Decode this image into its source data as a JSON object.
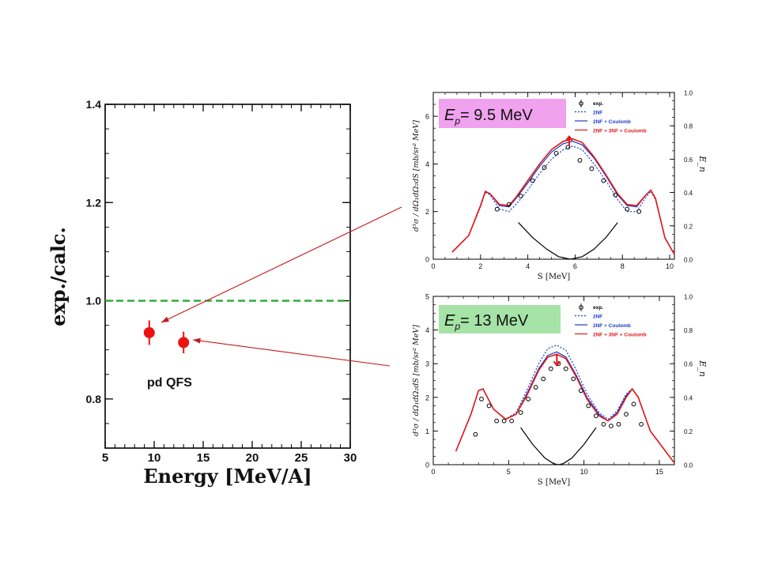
{
  "chart_data": [
    {
      "id": "ratio",
      "type": "scatter",
      "xlabel": "Energy [MeV/A]",
      "ylabel": "exp./calc.",
      "xlim": [
        5,
        30
      ],
      "ylim": [
        0.7,
        1.4
      ],
      "x_ticks": [
        "5",
        "10",
        "15",
        "20",
        "25",
        "30"
      ],
      "y_ticks": [
        "0.8",
        "1.0",
        "1.2",
        "1.4"
      ],
      "reference_line": {
        "y": 1.0,
        "style": "dashed",
        "color": "#22aa33"
      },
      "points": [
        {
          "x": 9.5,
          "y": 0.935,
          "err": 0.025
        },
        {
          "x": 13.0,
          "y": 0.915,
          "err": 0.022
        }
      ],
      "point_color": "#ee1111",
      "annotation": "pd QFS"
    },
    {
      "id": "ep95",
      "type": "line",
      "title": "E_p = 9.5 MeV",
      "xlabel": "S [MeV]",
      "ylabel": "d³σ / dΩ₁dΩ₂dS [mb/sr² MeV]",
      "right_label": "E_n",
      "xlim": [
        0,
        10.2
      ],
      "ylim": [
        0,
        7
      ],
      "right_ylim": [
        0,
        1
      ],
      "x_ticks": [
        "0",
        "2",
        "4",
        "6",
        "8",
        "10"
      ],
      "y_ticks": [
        "0",
        "2",
        "4",
        "6"
      ],
      "right_ticks": [
        "0.0",
        "0.2",
        "0.4",
        "0.6",
        "0.8",
        "1.0"
      ],
      "legend": [
        "exp.",
        "2NF",
        "2NF + Coulomb",
        "2NF + 3NF + Coulomb"
      ],
      "series": [
        {
          "name": "2NF",
          "color": "#1a3cc8",
          "dash": true,
          "x": [
            0.8,
            1.5,
            2.0,
            2.2,
            2.4,
            2.8,
            3.2,
            3.5,
            4.0,
            4.5,
            5.0,
            5.5,
            5.9,
            6.3,
            6.8,
            7.3,
            7.8,
            8.2,
            8.6,
            9.0,
            9.2,
            9.4,
            9.8,
            10.2
          ],
          "y": [
            0.3,
            1.0,
            2.2,
            2.8,
            2.7,
            2.1,
            2.0,
            2.3,
            2.9,
            3.6,
            4.2,
            4.6,
            4.75,
            4.6,
            4.0,
            3.3,
            2.5,
            2.0,
            2.0,
            2.6,
            2.85,
            2.5,
            0.9,
            0.2
          ]
        },
        {
          "name": "2NF + Coulomb",
          "color": "#1a3cc8",
          "dash": false,
          "x": [
            0.8,
            1.5,
            2.0,
            2.2,
            2.4,
            2.8,
            3.2,
            3.5,
            4.0,
            4.5,
            5.0,
            5.5,
            5.9,
            6.3,
            6.8,
            7.3,
            7.8,
            8.2,
            8.6,
            9.0,
            9.2,
            9.4,
            9.8,
            10.2
          ],
          "y": [
            0.3,
            1.0,
            2.25,
            2.85,
            2.75,
            2.25,
            2.2,
            2.55,
            3.2,
            3.9,
            4.5,
            4.85,
            4.95,
            4.8,
            4.25,
            3.5,
            2.7,
            2.25,
            2.2,
            2.7,
            2.9,
            2.55,
            0.9,
            0.2
          ]
        },
        {
          "name": "2NF + 3NF + Coulomb",
          "color": "#e01818",
          "dash": false,
          "x": [
            0.8,
            1.5,
            2.0,
            2.2,
            2.4,
            2.8,
            3.2,
            3.5,
            4.0,
            4.5,
            5.0,
            5.5,
            5.9,
            6.3,
            6.8,
            7.3,
            7.8,
            8.2,
            8.6,
            9.0,
            9.2,
            9.4,
            9.8,
            10.2
          ],
          "y": [
            0.3,
            1.0,
            2.25,
            2.85,
            2.75,
            2.3,
            2.25,
            2.6,
            3.3,
            4.0,
            4.6,
            4.95,
            5.05,
            4.9,
            4.3,
            3.55,
            2.75,
            2.3,
            2.25,
            2.7,
            2.9,
            2.55,
            0.9,
            0.2
          ]
        },
        {
          "name": "E_n",
          "color": "#000000",
          "dash": false,
          "axis": "right",
          "x": [
            3.6,
            4.2,
            4.8,
            5.3,
            5.8,
            6.3,
            6.8,
            7.3,
            7.8
          ],
          "y": [
            0.22,
            0.13,
            0.06,
            0.015,
            0.0,
            0.015,
            0.06,
            0.13,
            0.22
          ]
        }
      ],
      "exp_points": {
        "x": [
          2.7,
          3.2,
          3.7,
          4.2,
          4.7,
          5.2,
          5.7,
          6.2,
          6.7,
          7.2,
          7.7,
          8.2,
          8.7
        ],
        "y": [
          2.1,
          2.3,
          2.65,
          3.3,
          3.85,
          4.45,
          4.7,
          4.15,
          3.8,
          3.3,
          2.7,
          2.1,
          2.0
        ]
      },
      "arrow": {
        "x": 5.75,
        "from": 4.75,
        "to": 5.15
      }
    },
    {
      "id": "ep13",
      "type": "line",
      "title": "E_p = 13 MeV",
      "xlabel": "S [MeV]",
      "ylabel": "d³σ / dΩ₁dΩ₂dS [mb/sr² MeV]",
      "right_label": "E_n",
      "xlim": [
        0,
        16
      ],
      "ylim": [
        0,
        5
      ],
      "right_ylim": [
        0,
        1
      ],
      "x_ticks": [
        "0",
        "5",
        "10",
        "15"
      ],
      "y_ticks": [
        "0",
        "1",
        "2",
        "3",
        "4",
        "5"
      ],
      "right_ticks": [
        "0.0",
        "0.2",
        "0.4",
        "0.6",
        "0.8",
        "1.0"
      ],
      "legend": [
        "exp.",
        "2NF",
        "2NF + Coulomb",
        "2NF + 3NF + Coulomb"
      ],
      "series": [
        {
          "name": "2NF",
          "color": "#1a3cc8",
          "dash": true,
          "x": [
            1.5,
            2.5,
            3.0,
            3.3,
            4.0,
            4.8,
            5.5,
            6.2,
            7.0,
            7.6,
            8.2,
            8.8,
            9.5,
            10.2,
            11.0,
            11.6,
            12.2,
            12.8,
            13.2,
            13.6,
            14.4,
            16.0
          ],
          "y": [
            0.4,
            1.5,
            2.2,
            2.25,
            1.65,
            1.35,
            1.55,
            2.2,
            3.0,
            3.45,
            3.55,
            3.4,
            2.8,
            2.1,
            1.55,
            1.35,
            1.6,
            2.1,
            2.25,
            2.0,
            1.0,
            0.05
          ]
        },
        {
          "name": "2NF + Coulomb",
          "color": "#1a3cc8",
          "dash": false,
          "x": [
            1.5,
            2.5,
            3.0,
            3.3,
            4.0,
            4.8,
            5.5,
            6.2,
            7.0,
            7.6,
            8.2,
            8.8,
            9.5,
            10.2,
            11.0,
            11.6,
            12.2,
            12.8,
            13.2,
            13.6,
            14.4,
            16.0
          ],
          "y": [
            0.4,
            1.5,
            2.2,
            2.25,
            1.65,
            1.35,
            1.5,
            2.1,
            2.85,
            3.25,
            3.35,
            3.2,
            2.65,
            2.0,
            1.5,
            1.3,
            1.55,
            2.05,
            2.25,
            2.0,
            1.0,
            0.05
          ]
        },
        {
          "name": "2NF + 3NF + Coulomb",
          "color": "#e01818",
          "dash": false,
          "x": [
            1.5,
            2.5,
            3.0,
            3.3,
            4.0,
            4.8,
            5.5,
            6.2,
            7.0,
            7.6,
            8.2,
            8.8,
            9.5,
            10.2,
            11.0,
            11.6,
            12.2,
            12.8,
            13.2,
            13.6,
            14.4,
            16.0
          ],
          "y": [
            0.4,
            1.5,
            2.2,
            2.25,
            1.65,
            1.35,
            1.5,
            2.05,
            2.8,
            3.2,
            3.28,
            3.15,
            2.6,
            1.95,
            1.45,
            1.3,
            1.5,
            2.0,
            2.25,
            2.0,
            1.0,
            0.05
          ]
        },
        {
          "name": "E_n",
          "color": "#000000",
          "dash": false,
          "axis": "right",
          "x": [
            5.8,
            6.6,
            7.4,
            8.0,
            8.3,
            8.6,
            9.2,
            10.0,
            10.8
          ],
          "y": [
            0.22,
            0.12,
            0.04,
            0.005,
            0.0,
            0.005,
            0.04,
            0.12,
            0.22
          ]
        }
      ],
      "exp_points": {
        "x": [
          2.8,
          3.2,
          3.7,
          4.2,
          4.7,
          5.2,
          5.8,
          6.3,
          6.8,
          7.3,
          7.8,
          8.3,
          8.8,
          9.3,
          9.8,
          10.3,
          10.8,
          11.3,
          11.8,
          12.3,
          12.8,
          13.3,
          13.8
        ],
        "y": [
          0.9,
          1.95,
          1.75,
          1.3,
          1.3,
          1.3,
          1.55,
          1.95,
          2.3,
          2.55,
          2.85,
          3.0,
          2.85,
          2.55,
          2.2,
          1.75,
          1.45,
          1.2,
          1.15,
          1.2,
          1.5,
          1.8,
          1.2
        ]
      },
      "arrow": {
        "x": 8.2,
        "from": 3.3,
        "to": 2.95
      }
    }
  ]
}
